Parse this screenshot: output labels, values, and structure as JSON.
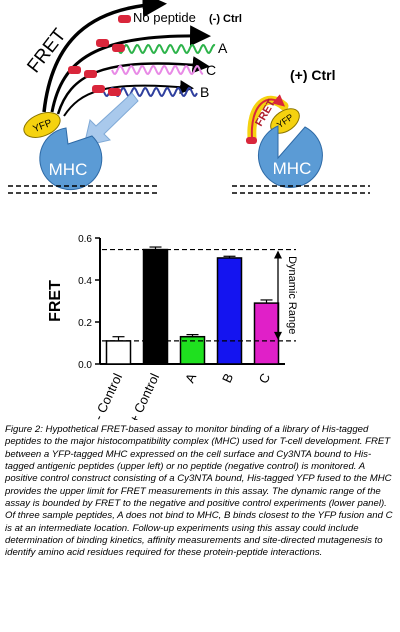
{
  "diagram": {
    "top_left": {
      "fret_label": "FRET",
      "no_peptide_label": "No peptide",
      "neg_ctrl_label": "(-) Ctrl",
      "peptide_labels": [
        "A",
        "C",
        "B"
      ],
      "yfp_label": "YFP",
      "mhc_label": "MHC",
      "colors": {
        "A": "#2db34a",
        "C": "#e88ae6",
        "B": "#2f3f9e",
        "cy3": "#d9263b",
        "mhc": "#5b9bd5",
        "yfp": "#f5d20f"
      }
    },
    "top_right": {
      "title": "(+) Ctrl",
      "fret_label": "FRET",
      "yfp_label": "YFP",
      "mhc_label": "MHC"
    }
  },
  "chart_data": {
    "type": "bar",
    "categories": [
      "- Control",
      "+ Control",
      "A",
      "B",
      "C"
    ],
    "values": [
      0.11,
      0.545,
      0.13,
      0.505,
      0.29
    ],
    "errors": [
      0.02,
      0.012,
      0.01,
      0.008,
      0.015
    ],
    "colors": [
      "#ffffff",
      "#000000",
      "#1fe01f",
      "#1414f0",
      "#e020c8"
    ],
    "ylabel": "FRET",
    "ylim": [
      0,
      0.6
    ],
    "yticks": [
      "0.0",
      "0.2",
      "0.4",
      "0.6"
    ],
    "reference_lines": [
      0.11,
      0.545
    ],
    "annotation": "Dynamic Range"
  },
  "caption": "Figure 2: Hypothetical FRET-based assay to monitor binding of a library of His-tagged peptides to the major histocompatibility complex (MHC) used for T-cell development.  FRET between a YFP-tagged MHC expressed on the cell surface and Cy3NTA bound to His-tagged antigenic peptides (upper left) or no peptide (negative control) is monitored.  A positive control construct consisting of a Cy3NTA bound, His-tagged YFP fused to the MHC provides the upper limit for FRET measurements in this assay.  The dynamic range of the assay is bounded by FRET to the negative and positive control experiments (lower panel).  Of three sample peptides, A does not bind to MHC, B binds closest to the YFP fusion and C is at an intermediate location.  Follow-up experiments using this assay could include determination of binding kinetics, affinity measurements and site-directed mutagenesis to identify amino acid residues required for these protein-peptide interactions."
}
